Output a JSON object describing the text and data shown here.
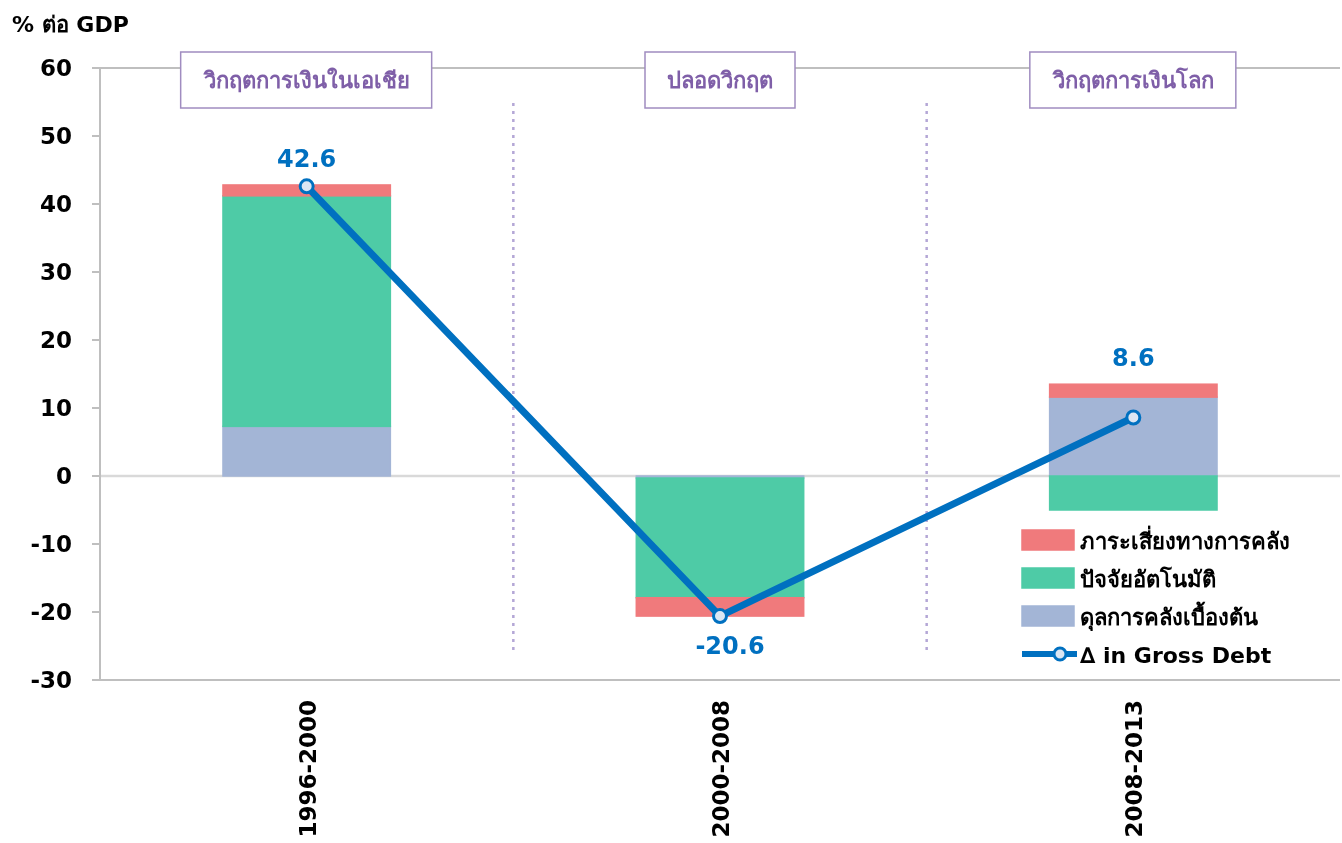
{
  "chart_data": {
    "type": "bar",
    "stacked": true,
    "ylabel": "% ต่อ GDP",
    "categories": [
      "1996-2000",
      "2000-2008",
      "2008-2013"
    ],
    "series": [
      {
        "name": "ดุลการคลังเบื้องต้น",
        "color": "#a3b5d6",
        "values": [
          7.3,
          -0.3,
          11.6
        ]
      },
      {
        "name": "ปัจจัยอัตโนมัติ",
        "color": "#4ecba6",
        "values": [
          33.9,
          -17.6,
          -5.0
        ]
      },
      {
        "name": "ภาระเสี่ยงทางการคลัง",
        "color": "#f07a7c",
        "values": [
          1.6,
          -2.7,
          1.9
        ]
      },
      {
        "name": "∆ in Gross Debt",
        "type": "line",
        "color": "#0070c0",
        "values": [
          42.6,
          -20.6,
          8.6
        ],
        "value_labels": [
          "42.6",
          "-20.6",
          "8.6"
        ],
        "marker": "circle"
      }
    ],
    "ylim": [
      -30,
      60
    ],
    "yticks": [
      -30,
      -20,
      -10,
      0,
      10,
      20,
      30,
      40,
      50,
      60
    ],
    "ref_lines": [
      {
        "axis": "y",
        "value": 0,
        "color": "#d9d9d9",
        "line_style": "solid"
      }
    ],
    "annotations": [
      "วิกฤตการเงินในเอเชีย",
      "ปลอดวิกฤต",
      "วิกฤตการเงินโลก"
    ],
    "legend": "bottom right"
  }
}
